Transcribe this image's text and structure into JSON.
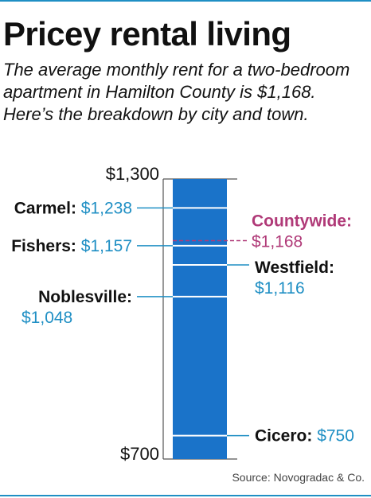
{
  "title": "Pricey rental living",
  "subtitle": "The average monthly rent for a two-bedroom apartment in Hamilton County is $1,168. Here’s the breakdown by city and town.",
  "source": "Source: Novogradac & Co.",
  "colors": {
    "bar": "#1a73c9",
    "value_text": "#1f8fc4",
    "countywide": "#b03a78",
    "rule": "#1f8fc4"
  },
  "chart_data": {
    "type": "bar",
    "ylim": [
      700,
      1300
    ],
    "ytick_labels": [
      "$1,300",
      "$700"
    ],
    "grid": false,
    "points": [
      {
        "name": "Carmel:",
        "value": 1238,
        "label": "$1,238",
        "side": "left",
        "layout": "inline"
      },
      {
        "name": "Fishers:",
        "value": 1157,
        "label": "$1,157",
        "side": "left",
        "layout": "inline"
      },
      {
        "name": "Noblesville:",
        "value": 1048,
        "label": "$1,048",
        "side": "left",
        "layout": "stacked"
      },
      {
        "name": "Westfield:",
        "value": 1116,
        "label": "$1,116",
        "side": "right",
        "layout": "stacked"
      },
      {
        "name": "Cicero:",
        "value": 750,
        "label": "$750",
        "side": "right",
        "layout": "inline"
      }
    ],
    "reference": {
      "name": "Countywide:",
      "value": 1168,
      "label": "$1,168"
    }
  }
}
